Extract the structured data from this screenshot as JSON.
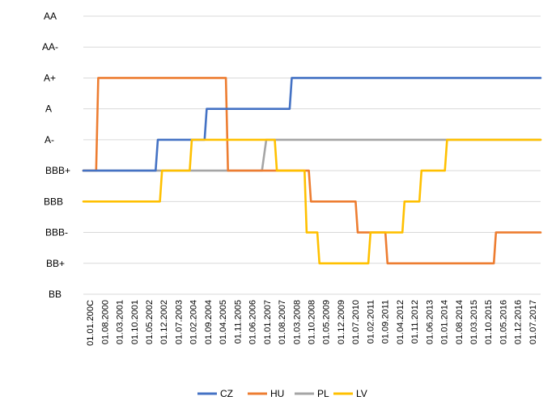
{
  "chart_data": {
    "type": "line",
    "title": "",
    "xlabel": "",
    "ylabel": "",
    "y_categories": [
      "BB",
      "BB+",
      "BBB-",
      "BBB",
      "BBB+",
      "A-",
      "A",
      "A+",
      "AA-",
      "AA"
    ],
    "x_tick_labels": [
      "01.01.200C",
      "01.08.2000",
      "01.03.2001",
      "01.10.2001",
      "01.05.2002",
      "01.12.2002",
      "01.07.2003",
      "01.02.2004",
      "01.09.2004",
      "01.04.2005",
      "01.11.2005",
      "01.06.2006",
      "01.01.2007",
      "01.08.2007",
      "01.03.2008",
      "01.10.2008",
      "01.05.2009",
      "01.12.2009",
      "01.07.2010",
      "01.02.2011",
      "01.09.2011",
      "01.04.2012",
      "01.11.2012",
      "01.06.2013",
      "01.01.2014",
      "01.08.2014",
      "01.03.2015",
      "01.10.2015",
      "01.05.2016",
      "01.12.2016",
      "01.07.2017"
    ],
    "x_range": [
      "2000-01",
      "2017-12"
    ],
    "grid": true,
    "legend_position": "bottom",
    "series": [
      {
        "name": "CZ",
        "color": "#4472C4",
        "points": [
          [
            "2000-01",
            "BBB+"
          ],
          [
            "2002-11",
            "BBB+"
          ],
          [
            "2002-12",
            "A-"
          ],
          [
            "2004-10",
            "A-"
          ],
          [
            "2004-11",
            "A"
          ],
          [
            "2008-02",
            "A"
          ],
          [
            "2008-03",
            "A+"
          ],
          [
            "2017-12",
            "A+"
          ]
        ]
      },
      {
        "name": "HU",
        "color": "#ED7D31",
        "points": [
          [
            "2000-01",
            "BBB+"
          ],
          [
            "2000-07",
            "BBB+"
          ],
          [
            "2000-08",
            "A+"
          ],
          [
            "2005-08",
            "A+"
          ],
          [
            "2005-09",
            "BBB+"
          ],
          [
            "2008-11",
            "BBB+"
          ],
          [
            "2008-12",
            "BBB"
          ],
          [
            "2010-09",
            "BBB"
          ],
          [
            "2010-10",
            "BBB-"
          ],
          [
            "2011-11",
            "BBB-"
          ],
          [
            "2011-12",
            "BB+"
          ],
          [
            "2016-02",
            "BB+"
          ],
          [
            "2016-03",
            "BBB-"
          ],
          [
            "2017-12",
            "BBB-"
          ]
        ]
      },
      {
        "name": "PL",
        "color": "#A5A5A5",
        "points": [
          [
            "2000-01",
            "BBB+"
          ],
          [
            "2007-01",
            "BBB+"
          ],
          [
            "2007-03",
            "A-"
          ],
          [
            "2017-12",
            "A-"
          ]
        ]
      },
      {
        "name": "LV",
        "color": "#FFC000",
        "points": [
          [
            "2000-01",
            "BBB"
          ],
          [
            "2003-01",
            "BBB"
          ],
          [
            "2003-02",
            "BBB+"
          ],
          [
            "2004-03",
            "BBB+"
          ],
          [
            "2004-04",
            "A-"
          ],
          [
            "2007-07",
            "A-"
          ],
          [
            "2007-08",
            "BBB+"
          ],
          [
            "2008-09",
            "BBB+"
          ],
          [
            "2008-10",
            "BBB-"
          ],
          [
            "2009-03",
            "BBB-"
          ],
          [
            "2009-04",
            "BB+"
          ],
          [
            "2011-03",
            "BB+"
          ],
          [
            "2011-04",
            "BBB-"
          ],
          [
            "2012-07",
            "BBB-"
          ],
          [
            "2012-08",
            "BBB"
          ],
          [
            "2013-03",
            "BBB"
          ],
          [
            "2013-04",
            "BBB+"
          ],
          [
            "2014-03",
            "BBB+"
          ],
          [
            "2014-04",
            "A-"
          ],
          [
            "2017-12",
            "A-"
          ]
        ]
      }
    ]
  }
}
